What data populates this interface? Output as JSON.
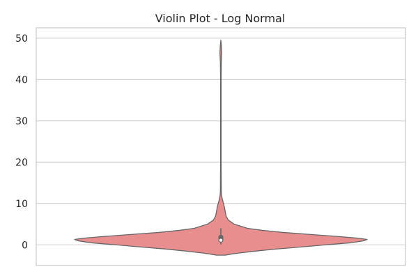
{
  "chart_data": {
    "type": "violin",
    "title": "Violin Plot - Log Normal",
    "xlabel": "",
    "ylabel": "",
    "ylim": [
      -5,
      52.5
    ],
    "yticks": [
      0,
      10,
      20,
      30,
      40,
      50
    ],
    "grid": true,
    "colors": {
      "fill": "#e88e8e",
      "edge": "#666666",
      "grid": "#cccccc",
      "frame": "#cccccc"
    },
    "series": [
      {
        "category_index": 0,
        "min": 0.1,
        "max": 47.0,
        "q1": 0.6,
        "median": 1.1,
        "q3": 2.4,
        "whisker_low": 0.1,
        "whisker_high": 4.0,
        "density": [
          [
            -2.5,
            0.03
          ],
          [
            -2.3,
            0.06
          ],
          [
            -2.0,
            0.12
          ],
          [
            -1.5,
            0.24
          ],
          [
            -1.0,
            0.38
          ],
          [
            -0.5,
            0.55
          ],
          [
            0.0,
            0.71
          ],
          [
            0.5,
            0.88
          ],
          [
            1.0,
            0.97
          ],
          [
            1.3,
            0.99
          ],
          [
            1.6,
            0.93
          ],
          [
            2.0,
            0.8
          ],
          [
            2.5,
            0.61
          ],
          [
            3.0,
            0.42
          ],
          [
            3.5,
            0.28
          ],
          [
            4.0,
            0.18
          ],
          [
            5.0,
            0.09
          ],
          [
            6.0,
            0.05
          ],
          [
            7.0,
            0.035
          ],
          [
            8.0,
            0.03
          ],
          [
            9.0,
            0.025
          ],
          [
            10.0,
            0.018
          ],
          [
            11.0,
            0.01
          ],
          [
            12.0,
            0.005
          ],
          [
            13.0,
            0.003
          ],
          [
            20.0,
            0.002
          ],
          [
            30.0,
            0.002
          ],
          [
            40.0,
            0.002
          ],
          [
            44.0,
            0.003
          ],
          [
            46.5,
            0.006
          ],
          [
            48.0,
            0.004
          ],
          [
            49.5,
            0.0
          ]
        ]
      }
    ]
  }
}
